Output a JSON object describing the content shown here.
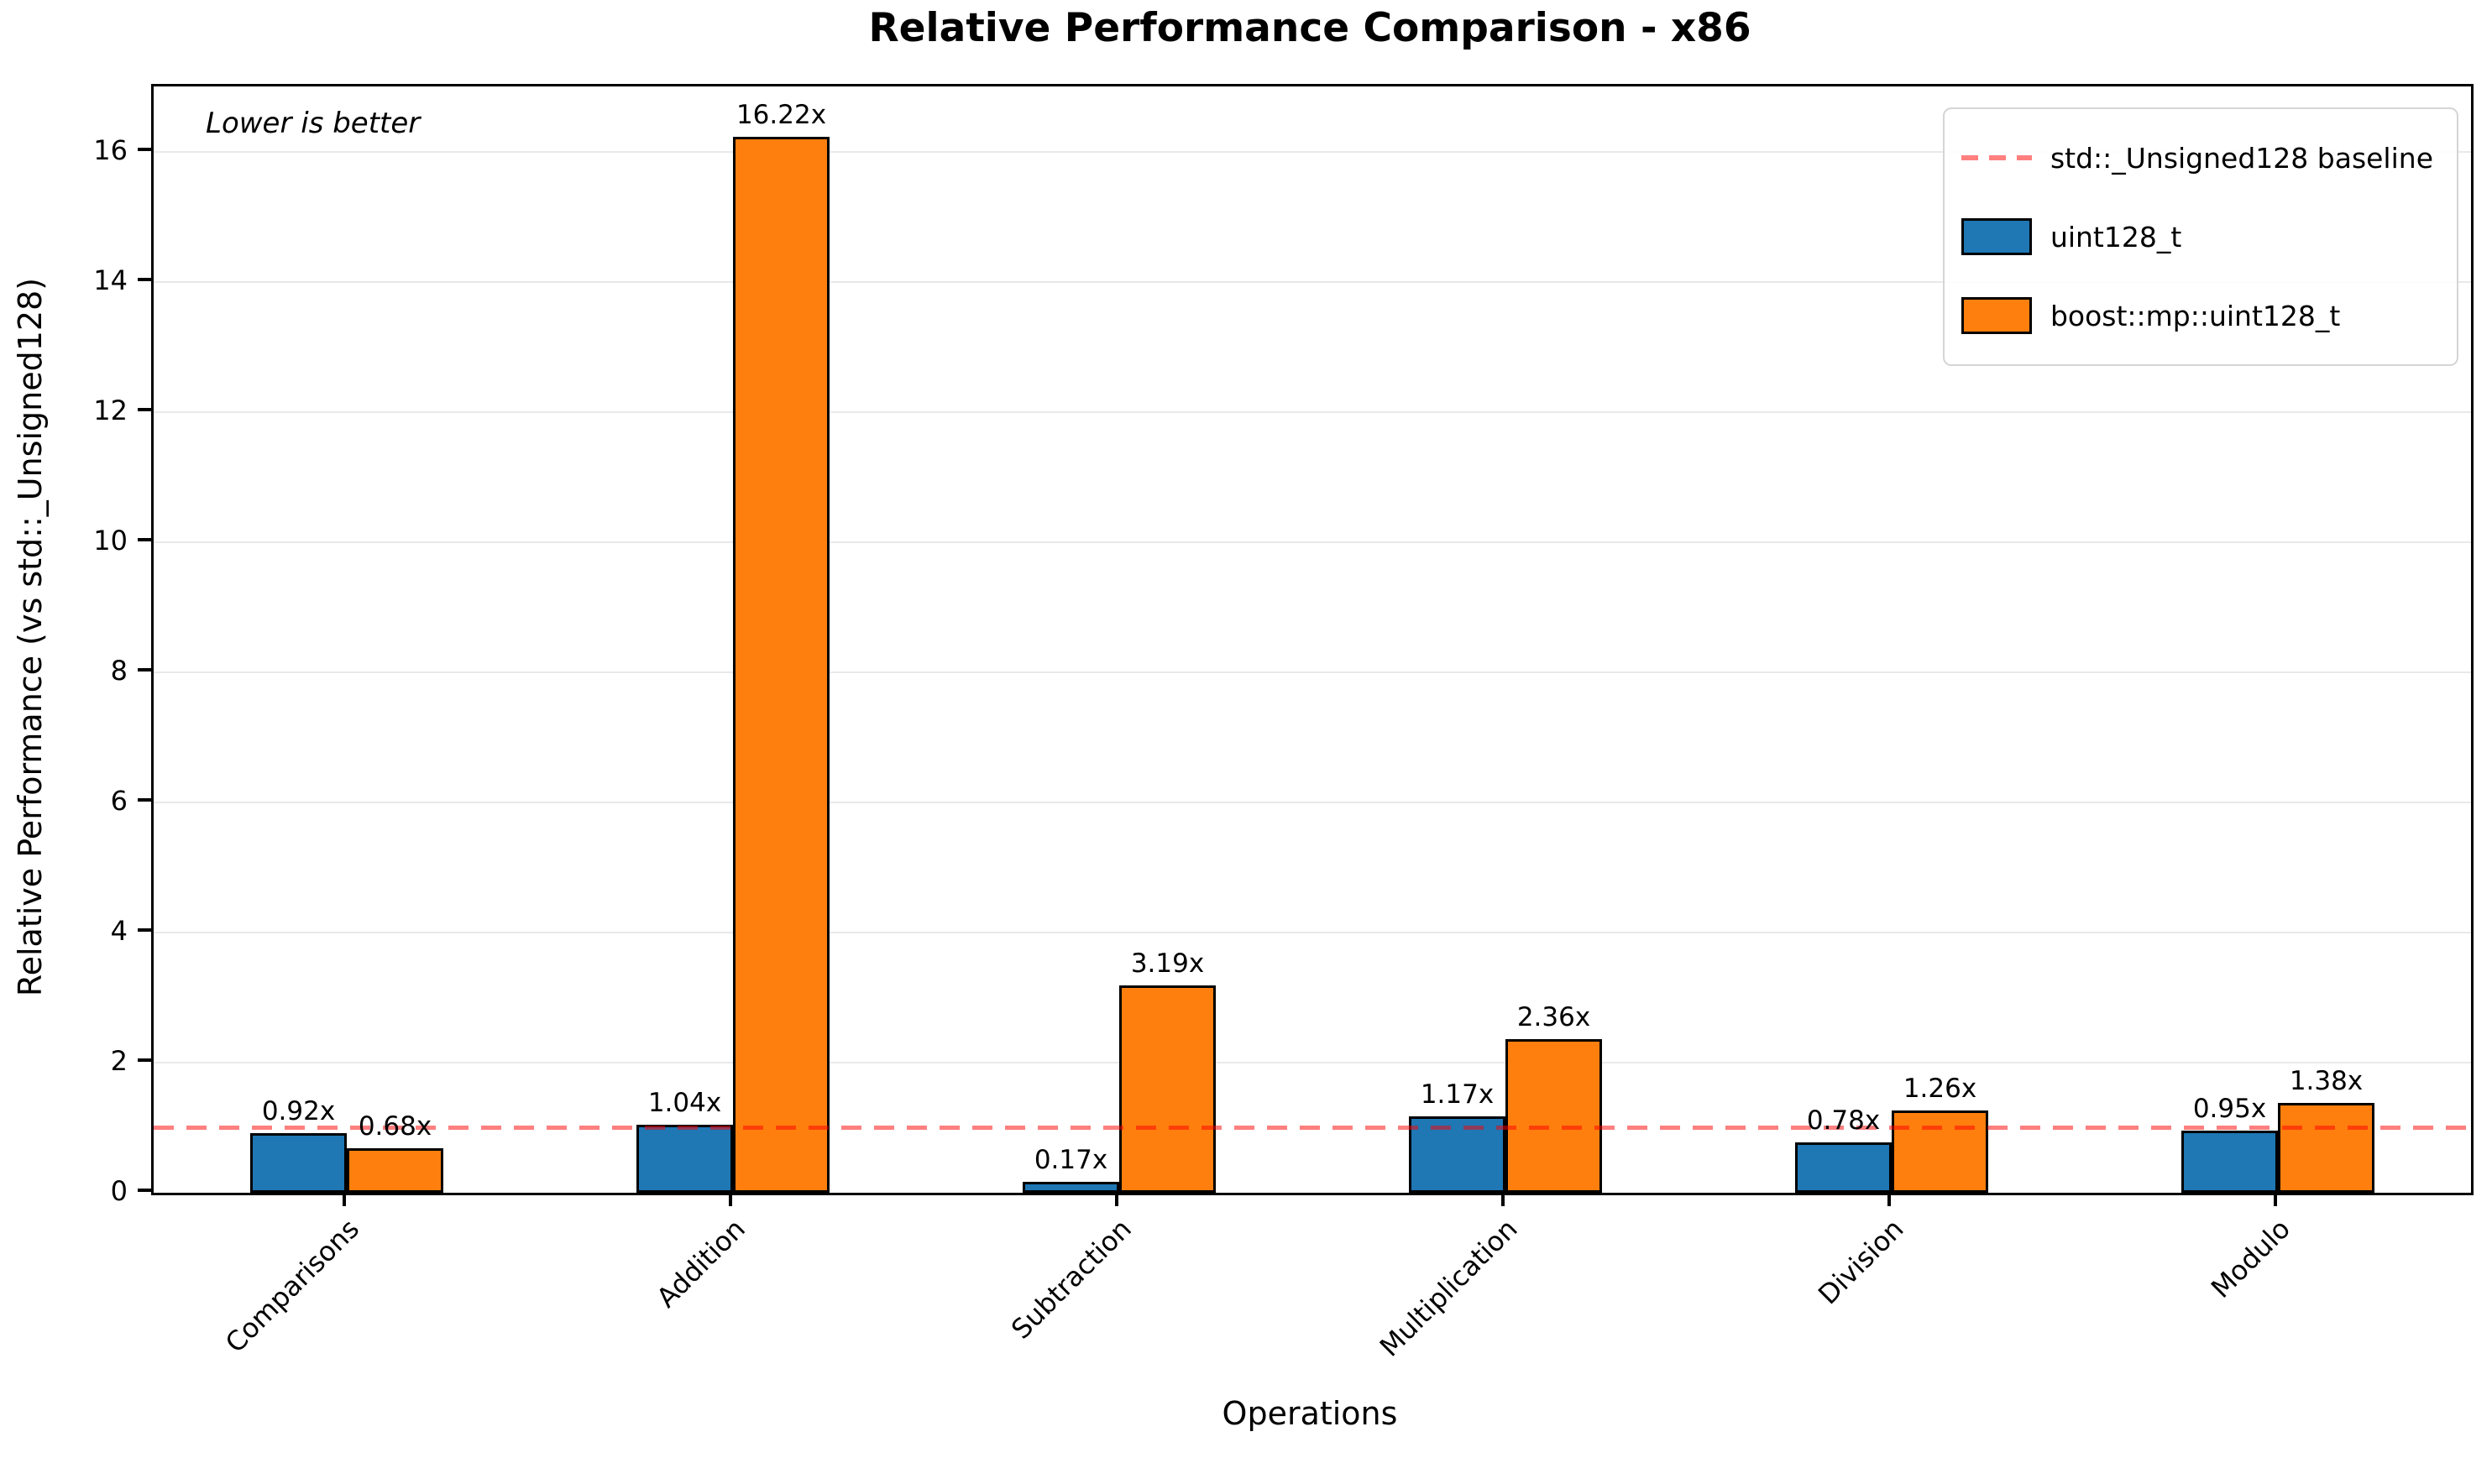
{
  "chart_data": {
    "type": "bar",
    "title": "Relative Performance Comparison - x86",
    "xlabel": "Operations",
    "ylabel": "Relative Performance (vs std::_Unsigned128)",
    "annotation": "Lower is better",
    "categories": [
      "Comparisons",
      "Addition",
      "Subtraction",
      "Multiplication",
      "Division",
      "Modulo"
    ],
    "series": [
      {
        "name": "uint128_t",
        "color": "#1f77b4",
        "values": [
          0.92,
          1.04,
          0.17,
          1.17,
          0.78,
          0.95
        ],
        "bar_labels": [
          "0.92x",
          "1.04x",
          "0.17x",
          "1.17x",
          "0.78x",
          "0.95x"
        ]
      },
      {
        "name": "boost::mp::uint128_t",
        "color": "#ff7f0e",
        "values": [
          0.68,
          16.22,
          3.19,
          2.36,
          1.26,
          1.38
        ],
        "bar_labels": [
          "0.68x",
          "16.22x",
          "3.19x",
          "2.36x",
          "1.26x",
          "1.38x"
        ]
      }
    ],
    "baseline": {
      "value": 1,
      "label": "std::_Unsigned128 baseline",
      "color": "rgba(255,0,0,0.5)"
    },
    "ylim": [
      0,
      17
    ],
    "yticks": [
      0,
      2,
      4,
      6,
      8,
      10,
      12,
      14,
      16
    ],
    "ytick_labels": [
      "0",
      "2",
      "4",
      "6",
      "8",
      "10",
      "12",
      "14",
      "16"
    ],
    "grid": true,
    "legend_position": "upper right",
    "colors": {
      "spine": "#000000",
      "gridline": "#e9e9e9",
      "background": "#ffffff"
    }
  }
}
